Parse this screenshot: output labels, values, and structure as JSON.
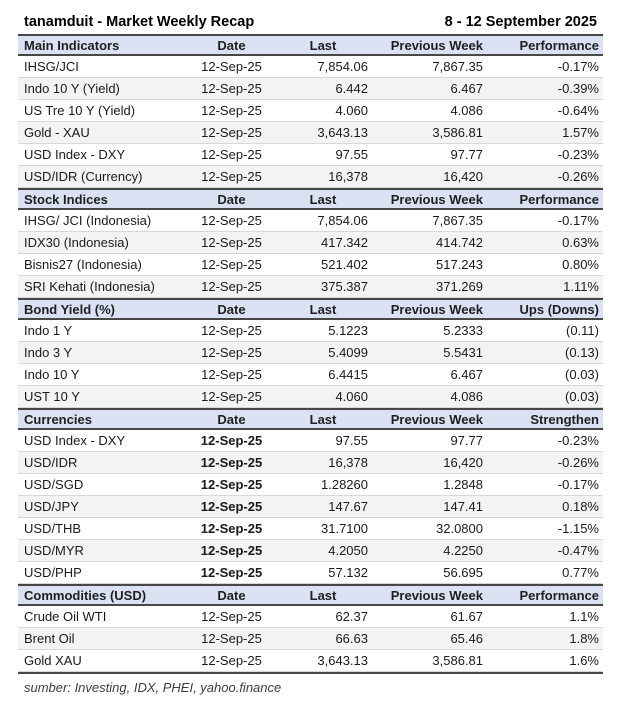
{
  "title": "tanamduit - Market Weekly Recap",
  "period": "8 - 12 September 2025",
  "source_note": "sumber: Investing, IDX, PHEI, yahoo.finance",
  "colors": {
    "section_header_background": "#D9E1F2",
    "row_stripe": "#F3F3F3",
    "dark_border": "#474747",
    "light_border": "#D8D8D8",
    "text": "#1A1A1A"
  },
  "sections": [
    {
      "name": "Main Indicators",
      "columns": [
        "Main Indicators",
        "Date",
        "Last",
        "Previous Week",
        "Performance"
      ],
      "bold_dates": false,
      "rows": [
        [
          "IHSG/JCI",
          "12-Sep-25",
          "7,854.06",
          "7,867.35",
          "-0.17%"
        ],
        [
          "Indo 10 Y (Yield)",
          "12-Sep-25",
          "6.442",
          "6.467",
          "-0.39%"
        ],
        [
          "US Tre 10 Y (Yield)",
          "12-Sep-25",
          "4.060",
          "4.086",
          "-0.64%"
        ],
        [
          "Gold - XAU",
          "12-Sep-25",
          "3,643.13",
          "3,586.81",
          "1.57%"
        ],
        [
          "USD Index - DXY",
          "12-Sep-25",
          "97.55",
          "97.77",
          "-0.23%"
        ],
        [
          "USD/IDR (Currency)",
          "12-Sep-25",
          "16,378",
          "16,420",
          "-0.26%"
        ]
      ]
    },
    {
      "name": "Stock Indices",
      "columns": [
        "Stock Indices",
        "Date",
        "Last",
        "Previous Week",
        "Performance"
      ],
      "bold_dates": false,
      "rows": [
        [
          "IHSG/ JCI (Indonesia)",
          "12-Sep-25",
          "7,854.06",
          "7,867.35",
          "-0.17%"
        ],
        [
          "IDX30 (Indonesia)",
          "12-Sep-25",
          "417.342",
          "414.742",
          "0.63%"
        ],
        [
          "Bisnis27 (Indonesia)",
          "12-Sep-25",
          "521.402",
          "517.243",
          "0.80%"
        ],
        [
          "SRI Kehati (Indonesia)",
          "12-Sep-25",
          "375.387",
          "371.269",
          "1.11%"
        ]
      ]
    },
    {
      "name": "Bond Yield (%)",
      "columns": [
        "Bond Yield (%)",
        "Date",
        "Last",
        "Previous Week",
        "Ups (Downs)"
      ],
      "bold_dates": false,
      "rows": [
        [
          "Indo 1 Y",
          "12-Sep-25",
          "5.1223",
          "5.2333",
          "(0.11)"
        ],
        [
          "Indo 3 Y",
          "12-Sep-25",
          "5.4099",
          "5.5431",
          "(0.13)"
        ],
        [
          "Indo 10 Y",
          "12-Sep-25",
          "6.4415",
          "6.467",
          "(0.03)"
        ],
        [
          "UST 10 Y",
          "12-Sep-25",
          "4.060",
          "4.086",
          "(0.03)"
        ]
      ]
    },
    {
      "name": "Currencies",
      "columns": [
        "Currencies",
        "Date",
        "Last",
        "Previous Week",
        "Strengthen"
      ],
      "bold_dates": true,
      "rows": [
        [
          "USD Index - DXY",
          "12-Sep-25",
          "97.55",
          "97.77",
          "-0.23%"
        ],
        [
          "USD/IDR",
          "12-Sep-25",
          "16,378",
          "16,420",
          "-0.26%"
        ],
        [
          "USD/SGD",
          "12-Sep-25",
          "1.28260",
          "1.2848",
          "-0.17%"
        ],
        [
          "USD/JPY",
          "12-Sep-25",
          "147.67",
          "147.41",
          "0.18%"
        ],
        [
          "USD/THB",
          "12-Sep-25",
          "31.7100",
          "32.0800",
          "-1.15%"
        ],
        [
          "USD/MYR",
          "12-Sep-25",
          "4.2050",
          "4.2250",
          "-0.47%"
        ],
        [
          "USD/PHP",
          "12-Sep-25",
          "57.132",
          "56.695",
          "0.77%"
        ]
      ]
    },
    {
      "name": "Commodities (USD)",
      "columns": [
        "Commodities (USD)",
        "Date",
        "Last",
        "Previous Week",
        "Performance"
      ],
      "bold_dates": false,
      "rows": [
        [
          "Crude Oil WTI",
          "12-Sep-25",
          "62.37",
          "61.67",
          "1.1%"
        ],
        [
          "Brent Oil",
          "12-Sep-25",
          "66.63",
          "65.46",
          "1.8%"
        ],
        [
          "Gold XAU",
          "12-Sep-25",
          "3,643.13",
          "3,586.81",
          "1.6%"
        ]
      ]
    }
  ]
}
